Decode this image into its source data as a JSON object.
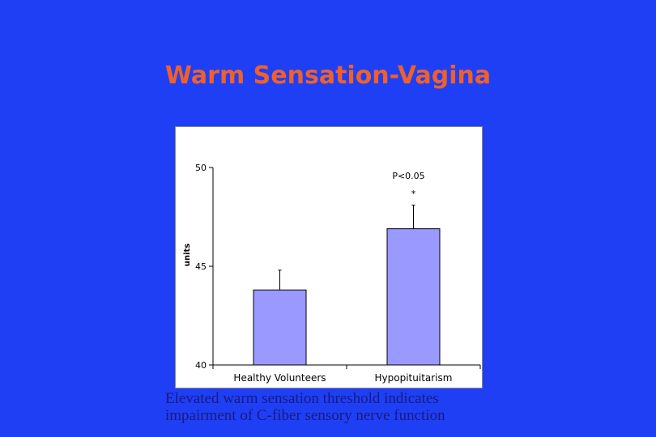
{
  "slide": {
    "title": "Warm Sensation-Vagina",
    "caption_lines": [
      "Elevated warm sensation threshold indicates",
      "impairment of C-fiber sensory nerve function"
    ]
  },
  "colors": {
    "background": "#1f3ff5",
    "title": "#f0602a",
    "bar_fill": "#9999ff",
    "caption": "#1a1a80"
  },
  "chart_data": {
    "type": "bar",
    "categories": [
      "Healthy Volunteers",
      "Hypopituitarism"
    ],
    "values": [
      43.8,
      46.9
    ],
    "errors": [
      1.0,
      1.2
    ],
    "ylabel": "units",
    "ylim": [
      40,
      50
    ],
    "yticks": [
      40,
      45,
      50
    ],
    "annotation": {
      "text": "P<0.05",
      "marker": "*"
    },
    "grid": false
  }
}
